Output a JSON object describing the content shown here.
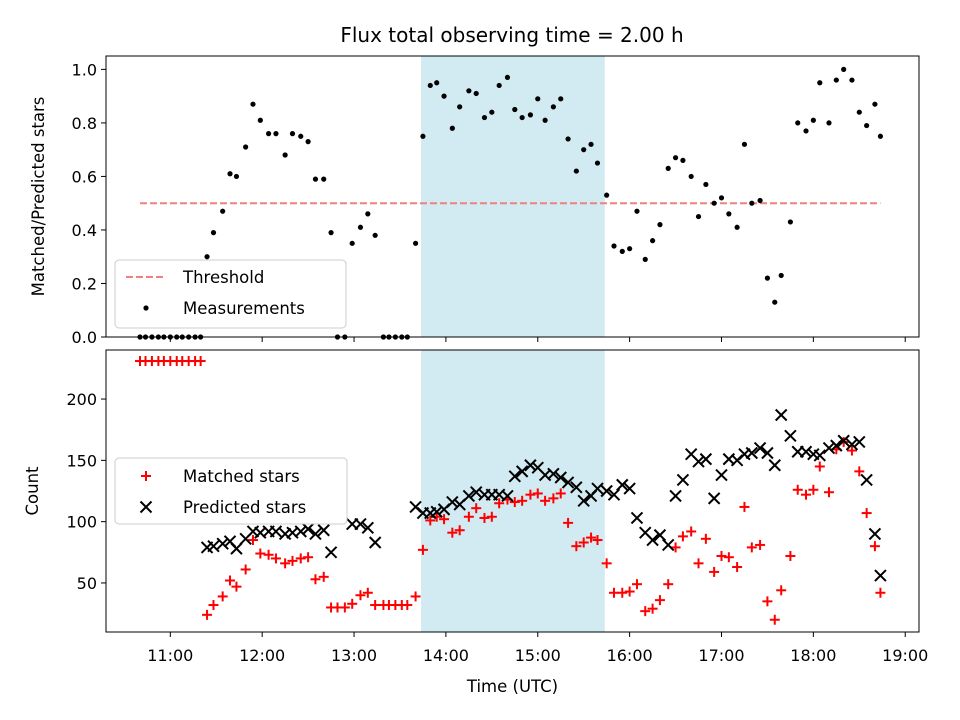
{
  "chart_data": {
    "type": "scatter",
    "title": "Flux total observing time = 2.00 h",
    "xlabel": "Time (UTC)",
    "x_tick_labels": [
      "11:00",
      "12:00",
      "13:00",
      "14:00",
      "15:00",
      "16:00",
      "17:00",
      "18:00",
      "19:00"
    ],
    "x_ticks_hours": [
      11,
      12,
      13,
      14,
      15,
      16,
      17,
      18,
      19
    ],
    "xlim_hours": [
      10.3,
      19.15
    ],
    "highlight_span_hours": [
      13.73,
      15.73
    ],
    "colors": {
      "threshold": "#f08080",
      "measurements": "#000000",
      "matched": "#ff0000",
      "predicted": "#000000",
      "span": "#add8e6"
    },
    "top": {
      "ylabel": "Matched/Predicted stars",
      "ylim": [
        0,
        1.05
      ],
      "yticks": [
        0.0,
        0.2,
        0.4,
        0.6,
        0.8,
        1.0
      ],
      "ytick_labels": [
        "0.0",
        "0.2",
        "0.4",
        "0.6",
        "0.8",
        "1.0"
      ],
      "threshold": 0.5,
      "threshold_x_range": [
        10.67,
        18.73
      ],
      "legend": [
        "Threshold",
        "Measurements"
      ],
      "legend_loc": "lower-left",
      "measurements": [
        [
          10.67,
          0
        ],
        [
          10.73,
          0
        ],
        [
          10.8,
          0
        ],
        [
          10.87,
          0
        ],
        [
          10.93,
          0
        ],
        [
          11.0,
          0
        ],
        [
          11.07,
          0
        ],
        [
          11.13,
          0
        ],
        [
          11.2,
          0
        ],
        [
          11.27,
          0
        ],
        [
          11.33,
          0
        ],
        [
          11.4,
          0.3
        ],
        [
          11.47,
          0.39
        ],
        [
          11.57,
          0.47
        ],
        [
          11.65,
          0.61
        ],
        [
          11.72,
          0.6
        ],
        [
          11.82,
          0.71
        ],
        [
          11.9,
          0.87
        ],
        [
          11.98,
          0.81
        ],
        [
          12.07,
          0.76
        ],
        [
          12.15,
          0.76
        ],
        [
          12.25,
          0.68
        ],
        [
          12.33,
          0.76
        ],
        [
          12.42,
          0.75
        ],
        [
          12.5,
          0.73
        ],
        [
          12.58,
          0.59
        ],
        [
          12.67,
          0.59
        ],
        [
          12.75,
          0.39
        ],
        [
          12.82,
          0
        ],
        [
          12.9,
          0
        ],
        [
          12.98,
          0.35
        ],
        [
          13.07,
          0.41
        ],
        [
          13.15,
          0.46
        ],
        [
          13.23,
          0.38
        ],
        [
          13.32,
          0
        ],
        [
          13.38,
          0
        ],
        [
          13.45,
          0
        ],
        [
          13.52,
          0
        ],
        [
          13.58,
          0
        ],
        [
          13.67,
          0.35
        ],
        [
          13.75,
          0.75
        ],
        [
          13.83,
          0.94
        ],
        [
          13.9,
          0.95
        ],
        [
          13.98,
          0.9
        ],
        [
          14.07,
          0.78
        ],
        [
          14.15,
          0.86
        ],
        [
          14.25,
          0.92
        ],
        [
          14.33,
          0.91
        ],
        [
          14.42,
          0.82
        ],
        [
          14.5,
          0.84
        ],
        [
          14.58,
          0.94
        ],
        [
          14.67,
          0.97
        ],
        [
          14.75,
          0.85
        ],
        [
          14.83,
          0.82
        ],
        [
          14.92,
          0.83
        ],
        [
          15.0,
          0.89
        ],
        [
          15.08,
          0.81
        ],
        [
          15.17,
          0.86
        ],
        [
          15.25,
          0.89
        ],
        [
          15.33,
          0.74
        ],
        [
          15.42,
          0.62
        ],
        [
          15.5,
          0.7
        ],
        [
          15.58,
          0.72
        ],
        [
          15.65,
          0.65
        ],
        [
          15.75,
          0.53
        ],
        [
          15.83,
          0.34
        ],
        [
          15.92,
          0.32
        ],
        [
          16.0,
          0.33
        ],
        [
          16.08,
          0.47
        ],
        [
          16.17,
          0.29
        ],
        [
          16.25,
          0.36
        ],
        [
          16.33,
          0.42
        ],
        [
          16.42,
          0.63
        ],
        [
          16.5,
          0.67
        ],
        [
          16.58,
          0.66
        ],
        [
          16.67,
          0.6
        ],
        [
          16.75,
          0.45
        ],
        [
          16.83,
          0.57
        ],
        [
          16.92,
          0.5
        ],
        [
          17.0,
          0.52
        ],
        [
          17.08,
          0.46
        ],
        [
          17.17,
          0.41
        ],
        [
          17.25,
          0.72
        ],
        [
          17.33,
          0.5
        ],
        [
          17.42,
          0.51
        ],
        [
          17.5,
          0.22
        ],
        [
          17.58,
          0.13
        ],
        [
          17.65,
          0.23
        ],
        [
          17.75,
          0.43
        ],
        [
          17.83,
          0.8
        ],
        [
          17.92,
          0.77
        ],
        [
          18.0,
          0.81
        ],
        [
          18.07,
          0.95
        ],
        [
          18.17,
          0.8
        ],
        [
          18.25,
          0.96
        ],
        [
          18.33,
          1.0
        ],
        [
          18.42,
          0.96
        ],
        [
          18.5,
          0.84
        ],
        [
          18.58,
          0.79
        ],
        [
          18.67,
          0.87
        ],
        [
          18.73,
          0.75
        ]
      ]
    },
    "bottom": {
      "ylabel": "Count",
      "ylim": [
        10,
        240
      ],
      "yticks": [
        50,
        100,
        150,
        200
      ],
      "ytick_labels": [
        "50",
        "100",
        "150",
        "200"
      ],
      "legend": [
        "Matched stars",
        "Predicted stars"
      ],
      "legend_loc": "center-left",
      "matched": [
        [
          10.67,
          231
        ],
        [
          10.73,
          231
        ],
        [
          10.8,
          231
        ],
        [
          10.87,
          231
        ],
        [
          10.93,
          231
        ],
        [
          11.0,
          231
        ],
        [
          11.07,
          231
        ],
        [
          11.13,
          231
        ],
        [
          11.2,
          231
        ],
        [
          11.27,
          231
        ],
        [
          11.33,
          231
        ],
        [
          11.4,
          24
        ],
        [
          11.47,
          32
        ],
        [
          11.57,
          39
        ],
        [
          11.65,
          52
        ],
        [
          11.72,
          47
        ],
        [
          11.82,
          61
        ],
        [
          11.9,
          85
        ],
        [
          11.98,
          74
        ],
        [
          12.07,
          73
        ],
        [
          12.15,
          70
        ],
        [
          12.25,
          66
        ],
        [
          12.33,
          68
        ],
        [
          12.42,
          70
        ],
        [
          12.5,
          71
        ],
        [
          12.58,
          53
        ],
        [
          12.67,
          55
        ],
        [
          12.75,
          30
        ],
        [
          12.82,
          30
        ],
        [
          12.9,
          30
        ],
        [
          12.98,
          33
        ],
        [
          13.07,
          40
        ],
        [
          13.15,
          42
        ],
        [
          13.23,
          32
        ],
        [
          13.32,
          32
        ],
        [
          13.38,
          32
        ],
        [
          13.45,
          32
        ],
        [
          13.52,
          32
        ],
        [
          13.58,
          32
        ],
        [
          13.67,
          39
        ],
        [
          13.75,
          77
        ],
        [
          13.83,
          101
        ],
        [
          13.9,
          104
        ],
        [
          13.98,
          102
        ],
        [
          14.07,
          91
        ],
        [
          14.15,
          93
        ],
        [
          14.25,
          104
        ],
        [
          14.33,
          111
        ],
        [
          14.42,
          103
        ],
        [
          14.5,
          104
        ],
        [
          14.58,
          115
        ],
        [
          14.67,
          118
        ],
        [
          14.75,
          116
        ],
        [
          14.83,
          117
        ],
        [
          14.92,
          122
        ],
        [
          15.0,
          123
        ],
        [
          15.08,
          117
        ],
        [
          15.17,
          119
        ],
        [
          15.25,
          123
        ],
        [
          15.33,
          99
        ],
        [
          15.42,
          80
        ],
        [
          15.5,
          83
        ],
        [
          15.58,
          87
        ],
        [
          15.65,
          85
        ],
        [
          15.75,
          66
        ],
        [
          15.83,
          42
        ],
        [
          15.92,
          42
        ],
        [
          16.0,
          43
        ],
        [
          16.08,
          49
        ],
        [
          16.17,
          27
        ],
        [
          16.25,
          29
        ],
        [
          16.33,
          36
        ],
        [
          16.42,
          49
        ],
        [
          16.5,
          79
        ],
        [
          16.58,
          88
        ],
        [
          16.67,
          92
        ],
        [
          16.75,
          66
        ],
        [
          16.83,
          86
        ],
        [
          16.92,
          59
        ],
        [
          17.0,
          72
        ],
        [
          17.08,
          71
        ],
        [
          17.17,
          63
        ],
        [
          17.25,
          112
        ],
        [
          17.33,
          79
        ],
        [
          17.42,
          81
        ],
        [
          17.5,
          35
        ],
        [
          17.58,
          20
        ],
        [
          17.65,
          44
        ],
        [
          17.75,
          72
        ],
        [
          17.83,
          126
        ],
        [
          17.92,
          122
        ],
        [
          18.0,
          126
        ],
        [
          18.07,
          145
        ],
        [
          18.17,
          124
        ],
        [
          18.25,
          159
        ],
        [
          18.33,
          165
        ],
        [
          18.42,
          158
        ],
        [
          18.5,
          141
        ],
        [
          18.58,
          107
        ],
        [
          18.67,
          80
        ],
        [
          18.73,
          42
        ]
      ],
      "predicted": [
        [
          11.4,
          79
        ],
        [
          11.47,
          80
        ],
        [
          11.57,
          82
        ],
        [
          11.65,
          84
        ],
        [
          11.72,
          78
        ],
        [
          11.82,
          86
        ],
        [
          11.9,
          92
        ],
        [
          11.98,
          91
        ],
        [
          12.07,
          92
        ],
        [
          12.15,
          92
        ],
        [
          12.25,
          90
        ],
        [
          12.33,
          91
        ],
        [
          12.42,
          92
        ],
        [
          12.5,
          94
        ],
        [
          12.58,
          90
        ],
        [
          12.67,
          93
        ],
        [
          12.75,
          75
        ],
        [
          12.98,
          98
        ],
        [
          13.07,
          98
        ],
        [
          13.15,
          95
        ],
        [
          13.23,
          83
        ],
        [
          13.67,
          112
        ],
        [
          13.75,
          107
        ],
        [
          13.83,
          107
        ],
        [
          13.9,
          108
        ],
        [
          13.98,
          110
        ],
        [
          14.07,
          116
        ],
        [
          14.15,
          114
        ],
        [
          14.25,
          121
        ],
        [
          14.33,
          124
        ],
        [
          14.42,
          122
        ],
        [
          14.5,
          122
        ],
        [
          14.58,
          122
        ],
        [
          14.67,
          121
        ],
        [
          14.75,
          137
        ],
        [
          14.83,
          141
        ],
        [
          14.92,
          146
        ],
        [
          15.0,
          144
        ],
        [
          15.08,
          138
        ],
        [
          15.17,
          139
        ],
        [
          15.25,
          136
        ],
        [
          15.33,
          132
        ],
        [
          15.42,
          128
        ],
        [
          15.5,
          117
        ],
        [
          15.58,
          121
        ],
        [
          15.65,
          127
        ],
        [
          15.75,
          125
        ],
        [
          15.83,
          122
        ],
        [
          15.92,
          130
        ],
        [
          16.0,
          127
        ],
        [
          16.08,
          103
        ],
        [
          16.17,
          91
        ],
        [
          16.25,
          85
        ],
        [
          16.33,
          89
        ],
        [
          16.42,
          81
        ],
        [
          16.5,
          121
        ],
        [
          16.58,
          134
        ],
        [
          16.67,
          155
        ],
        [
          16.75,
          149
        ],
        [
          16.83,
          151
        ],
        [
          16.92,
          119
        ],
        [
          17.0,
          138
        ],
        [
          17.08,
          151
        ],
        [
          17.17,
          150
        ],
        [
          17.25,
          155
        ],
        [
          17.33,
          156
        ],
        [
          17.42,
          160
        ],
        [
          17.5,
          156
        ],
        [
          17.58,
          146
        ],
        [
          17.65,
          187
        ],
        [
          17.75,
          170
        ],
        [
          17.83,
          157
        ],
        [
          17.92,
          157
        ],
        [
          18.0,
          155
        ],
        [
          18.07,
          154
        ],
        [
          18.17,
          160
        ],
        [
          18.25,
          162
        ],
        [
          18.33,
          166
        ],
        [
          18.42,
          163
        ],
        [
          18.5,
          165
        ],
        [
          18.58,
          134
        ],
        [
          18.67,
          90
        ],
        [
          18.73,
          56
        ]
      ]
    }
  }
}
